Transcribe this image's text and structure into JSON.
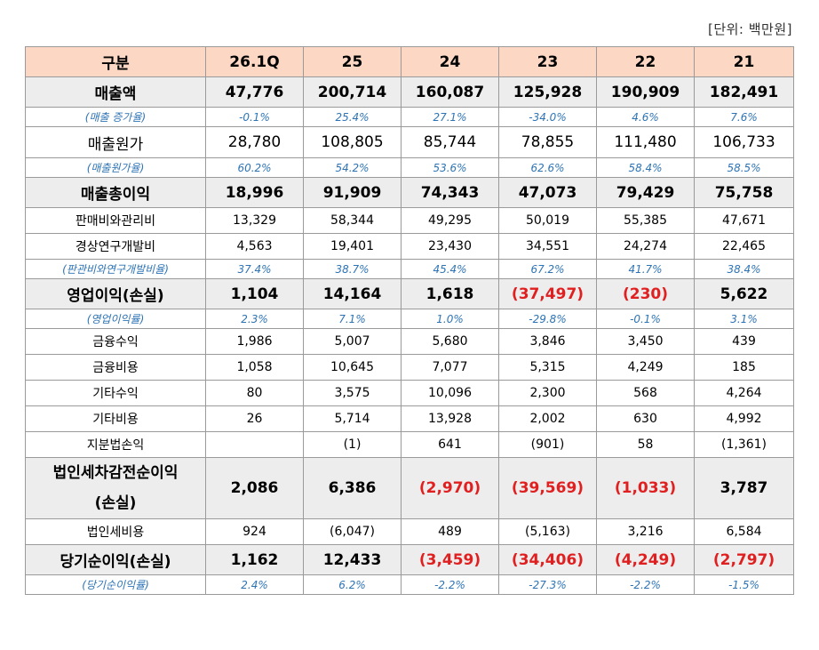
{
  "unit": "[단위:  백만원]",
  "headers": [
    "구분",
    "26.1Q",
    "25",
    "24",
    "23",
    "22",
    "21"
  ],
  "rows": [
    {
      "type": "major",
      "label": "매출액",
      "values": [
        "47,776",
        "200,714",
        "160,087",
        "125,928",
        "190,909",
        "182,491"
      ]
    },
    {
      "type": "pct",
      "label": "(매출  증가율)",
      "values": [
        "-0.1%",
        "25.4%",
        "27.1%",
        "-34.0%",
        "4.6%",
        "7.6%"
      ]
    },
    {
      "type": "normal-big",
      "label": "매출원가",
      "values": [
        "28,780",
        "108,805",
        "85,744",
        "78,855",
        "111,480",
        "106,733"
      ]
    },
    {
      "type": "pct",
      "label": "(매출원가율)",
      "values": [
        "60.2%",
        "54.2%",
        "53.6%",
        "62.6%",
        "58.4%",
        "58.5%"
      ]
    },
    {
      "type": "major",
      "label": "매출총이익",
      "values": [
        "18,996",
        "91,909",
        "74,343",
        "47,073",
        "79,429",
        "75,758"
      ]
    },
    {
      "type": "normal",
      "label": "판매비와관리비",
      "values": [
        "13,329",
        "58,344",
        "49,295",
        "50,019",
        "55,385",
        "47,671"
      ]
    },
    {
      "type": "normal",
      "label": "경상연구개발비",
      "values": [
        "4,563",
        "19,401",
        "23,430",
        "34,551",
        "24,274",
        "22,465"
      ]
    },
    {
      "type": "pct",
      "label": "(판관비와연구개발비율)",
      "values": [
        "37.4%",
        "38.7%",
        "45.4%",
        "67.2%",
        "41.7%",
        "38.4%"
      ]
    },
    {
      "type": "major",
      "label": "영업이익(손실)",
      "values": [
        "1,104",
        "14,164",
        "1,618",
        "(37,497)",
        "(230)",
        "5,622"
      ],
      "negative": [
        false,
        false,
        false,
        true,
        true,
        false
      ]
    },
    {
      "type": "pct",
      "label": "(영업이익률)",
      "values": [
        "2.3%",
        "7.1%",
        "1.0%",
        "-29.8%",
        "-0.1%",
        "3.1%"
      ]
    },
    {
      "type": "normal",
      "label": "금융수익",
      "values": [
        "1,986",
        "5,007",
        "5,680",
        "3,846",
        "3,450",
        "439"
      ]
    },
    {
      "type": "normal",
      "label": "금융비용",
      "values": [
        "1,058",
        "10,645",
        "7,077",
        "5,315",
        "4,249",
        "185"
      ]
    },
    {
      "type": "normal",
      "label": "기타수익",
      "values": [
        "80",
        "3,575",
        "10,096",
        "2,300",
        "568",
        "4,264"
      ]
    },
    {
      "type": "normal",
      "label": "기타비용",
      "values": [
        "26",
        "5,714",
        "13,928",
        "2,002",
        "630",
        "4,992"
      ]
    },
    {
      "type": "normal",
      "label": "지분법손익",
      "values": [
        "",
        "(1)",
        "641",
        "(901)",
        "58",
        "(1,361)"
      ]
    },
    {
      "type": "major-tall",
      "label": "법인세차감전순이익\n(손실)",
      "values": [
        "2,086",
        "6,386",
        "(2,970)",
        "(39,569)",
        "(1,033)",
        "3,787"
      ],
      "negative": [
        false,
        false,
        true,
        true,
        true,
        false
      ]
    },
    {
      "type": "normal",
      "label": "법인세비용",
      "values": [
        "924",
        "(6,047)",
        "489",
        "(5,163)",
        "3,216",
        "6,584"
      ]
    },
    {
      "type": "major",
      "label": "당기순이익(손실)",
      "values": [
        "1,162",
        "12,433",
        "(3,459)",
        "(34,406)",
        "(4,249)",
        "(2,797)"
      ],
      "negative": [
        false,
        false,
        true,
        true,
        true,
        true
      ]
    },
    {
      "type": "pct",
      "label": "(당기순이익률)",
      "values": [
        "2.4%",
        "6.2%",
        "-2.2%",
        "-27.3%",
        "-2.2%",
        "-1.5%"
      ]
    }
  ],
  "colors": {
    "header_bg": "#fbd7c4",
    "major_bg": "#ededed",
    "pct_text": "#2e74b5",
    "negative_text": "#e02020"
  }
}
